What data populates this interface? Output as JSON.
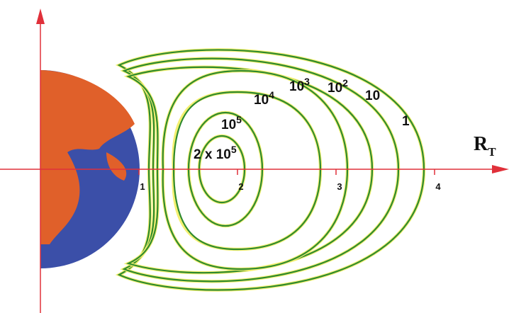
{
  "axis": {
    "label": "R",
    "subscript": "T",
    "ticks": [
      1,
      2,
      3,
      4
    ]
  },
  "contours": [
    {
      "base": "1"
    },
    {
      "base": "10"
    },
    {
      "base": "10",
      "exponent": "2"
    },
    {
      "base": "10",
      "exponent": "3"
    },
    {
      "base": "10",
      "exponent": "4"
    },
    {
      "base": "10",
      "exponent": "5"
    },
    {
      "base": "2 x 10",
      "exponent": "5"
    }
  ]
}
